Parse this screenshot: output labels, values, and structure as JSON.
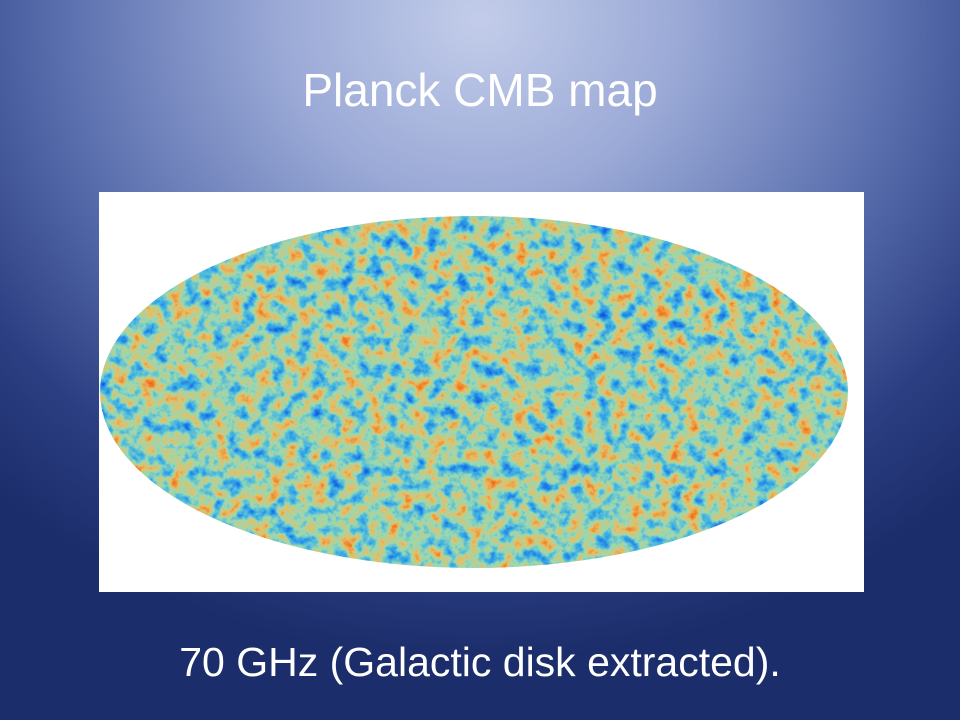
{
  "slide": {
    "title": "Planck CMB map",
    "caption": "70 GHz (Galactic disk extracted)."
  }
}
